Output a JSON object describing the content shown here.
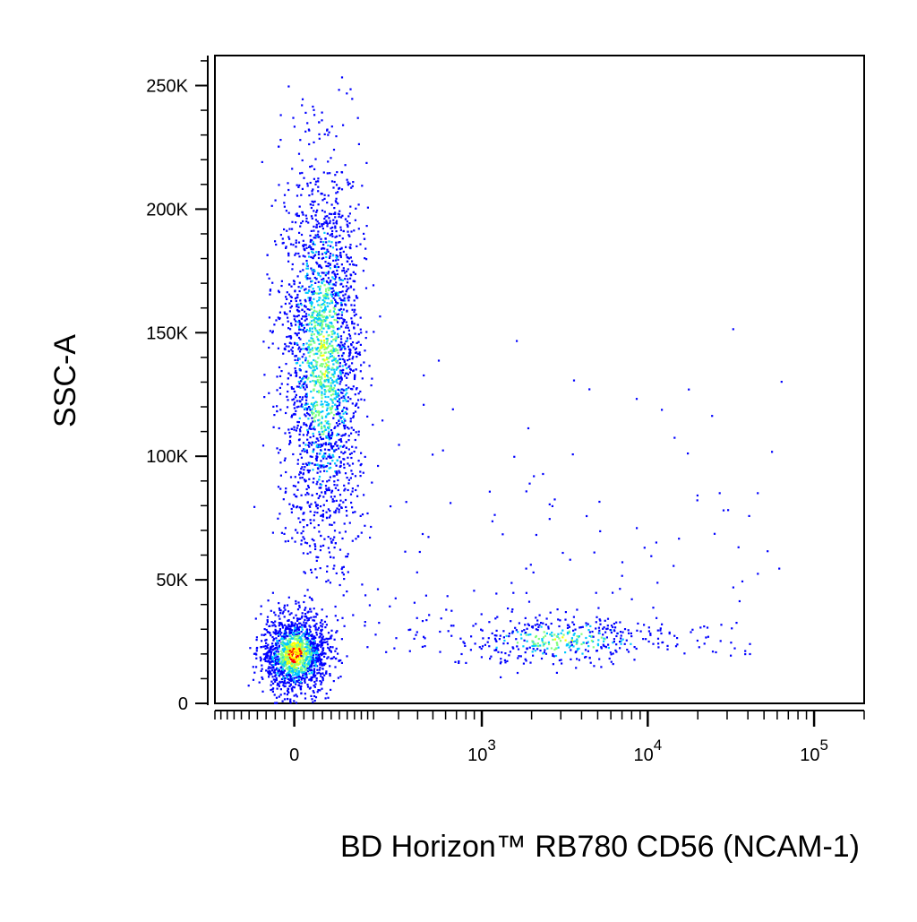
{
  "chart_data": {
    "type": "scatter",
    "title": "",
    "xlabel": "BD Horizon™ RB780  CD56 (NCAM-1)",
    "ylabel": "SSC-A",
    "x_scale": "biexponential",
    "xlim": [
      -200,
      200000
    ],
    "ylim": [
      0,
      262144
    ],
    "x_ticks": [
      {
        "value": 0,
        "label": "0",
        "sup": ""
      },
      {
        "value": 1000,
        "label": "10",
        "sup": "3"
      },
      {
        "value": 10000,
        "label": "10",
        "sup": "4"
      },
      {
        "value": 100000,
        "label": "10",
        "sup": "5"
      }
    ],
    "y_ticks": [
      {
        "value": 0,
        "label": "0"
      },
      {
        "value": 50000,
        "label": "50K"
      },
      {
        "value": 100000,
        "label": "100K"
      },
      {
        "value": 150000,
        "label": "150K"
      },
      {
        "value": 200000,
        "label": "200K"
      },
      {
        "value": 250000,
        "label": "250K"
      }
    ],
    "grid": false,
    "legend": "none",
    "density_colors": [
      "#0000ff",
      "#00c8ff",
      "#80ff80",
      "#ffff00",
      "#ff0000"
    ],
    "populations": [
      {
        "x_center": 0,
        "y_center": 20000,
        "x_spread": 35,
        "y_spread": 8000,
        "count": 1500,
        "density": "high"
      },
      {
        "x_center": 60,
        "y_center": 140000,
        "x_spread": 45,
        "y_spread": 40000,
        "count": 2400,
        "density": "medium"
      },
      {
        "x_center": 3000,
        "y_center": 26000,
        "x_spread_decades": 0.35,
        "y_spread": 5000,
        "count": 420,
        "density": "medium"
      }
    ]
  }
}
